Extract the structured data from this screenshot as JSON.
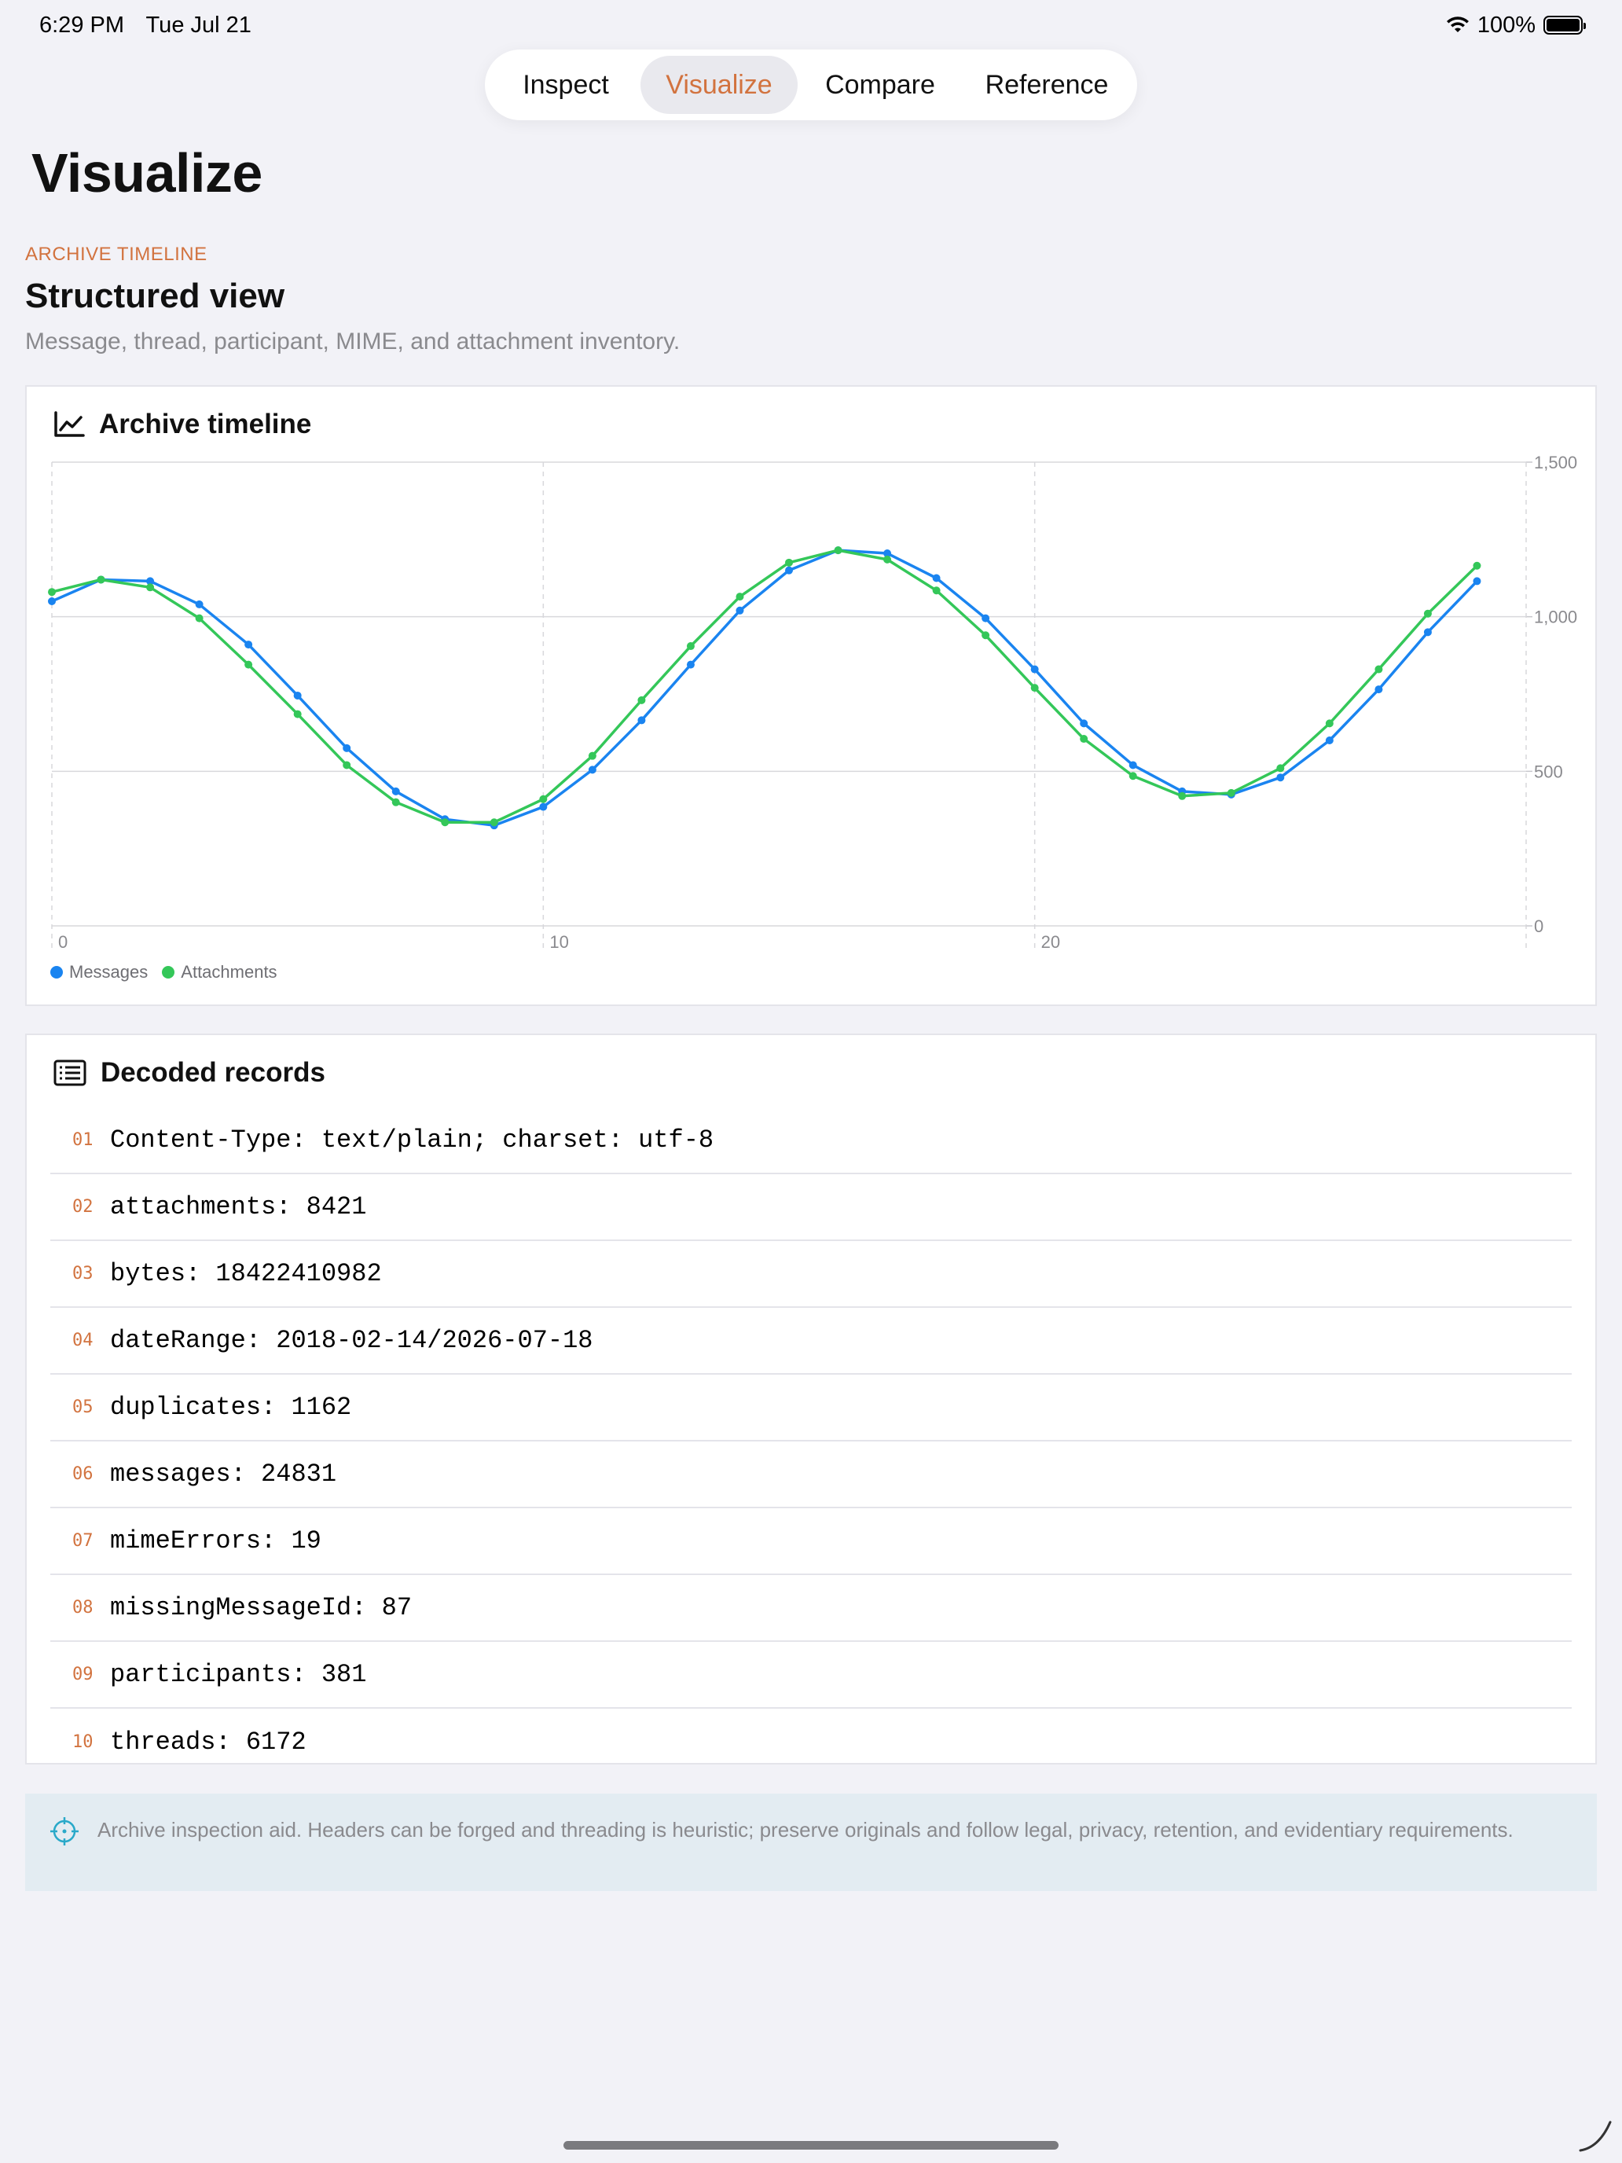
{
  "status_bar": {
    "time": "6:29 PM",
    "date": "Tue Jul 21",
    "battery": "100%",
    "battery_level": 1.0
  },
  "tabs": [
    {
      "label": "Inspect",
      "active": false
    },
    {
      "label": "Visualize",
      "active": true
    },
    {
      "label": "Compare",
      "active": false
    },
    {
      "label": "Reference",
      "active": false
    }
  ],
  "page_title": "Visualize",
  "section": {
    "eyebrow": "ARCHIVE TIMELINE",
    "title": "Structured view",
    "description": "Message, thread, participant, MIME, and attachment inventory."
  },
  "chart_card": {
    "title": "Archive timeline",
    "icon": "line-chart-icon"
  },
  "chart_data": {
    "type": "line",
    "title": "Archive timeline",
    "xlabel": "",
    "ylabel": "",
    "xlim": [
      0,
      30
    ],
    "ylim": [
      0,
      1500
    ],
    "x_ticks": [
      0,
      10,
      20
    ],
    "y_ticks": [
      0,
      500,
      1000,
      1500
    ],
    "x_tick_labels": [
      "0",
      "10",
      "20"
    ],
    "y_tick_labels": [
      "0",
      "500",
      "1,000",
      "1,500"
    ],
    "grid": true,
    "legend_position": "bottom-left",
    "x": [
      0,
      1,
      2,
      3,
      4,
      5,
      6,
      7,
      8,
      9,
      10,
      11,
      12,
      13,
      14,
      15,
      16,
      17,
      18,
      19,
      20,
      21,
      22,
      23,
      24,
      25,
      26,
      27,
      28,
      29
    ],
    "series": [
      {
        "name": "Messages",
        "color": "#1a84f0",
        "values": [
          1050,
          1120,
          1115,
          1040,
          910,
          745,
          575,
          435,
          345,
          325,
          385,
          505,
          665,
          845,
          1020,
          1150,
          1215,
          1205,
          1125,
          995,
          830,
          655,
          520,
          435,
          425,
          480,
          600,
          765,
          950,
          1115
        ]
      },
      {
        "name": "Attachments",
        "color": "#34c759",
        "values": [
          1080,
          1120,
          1095,
          995,
          845,
          685,
          520,
          400,
          335,
          335,
          410,
          550,
          730,
          905,
          1065,
          1175,
          1215,
          1185,
          1085,
          940,
          770,
          605,
          485,
          420,
          430,
          510,
          655,
          830,
          1010,
          1165
        ]
      }
    ]
  },
  "records_card": {
    "title": "Decoded records",
    "icon": "list-icon",
    "rows": [
      {
        "num": "01",
        "text": "Content-Type: text/plain; charset: utf-8"
      },
      {
        "num": "02",
        "text": "attachments: 8421"
      },
      {
        "num": "03",
        "text": "bytes: 18422410982"
      },
      {
        "num": "04",
        "text": "dateRange: 2018-02-14/2026-07-18"
      },
      {
        "num": "05",
        "text": "duplicates: 1162"
      },
      {
        "num": "06",
        "text": "messages: 24831"
      },
      {
        "num": "07",
        "text": "mimeErrors: 19"
      },
      {
        "num": "08",
        "text": "missingMessageId: 87"
      },
      {
        "num": "09",
        "text": "participants: 381"
      },
      {
        "num": "10",
        "text": "threads: 6172"
      }
    ]
  },
  "notice": {
    "icon": "crosshair-icon",
    "text": "Archive inspection aid. Headers can be forged and threading is heuristic; preserve originals and follow legal, privacy, retention, and evidentiary requirements."
  },
  "colors": {
    "accent": "#d2733f",
    "background": "#f2f2f7",
    "notice_bg": "#e3ecf2"
  }
}
